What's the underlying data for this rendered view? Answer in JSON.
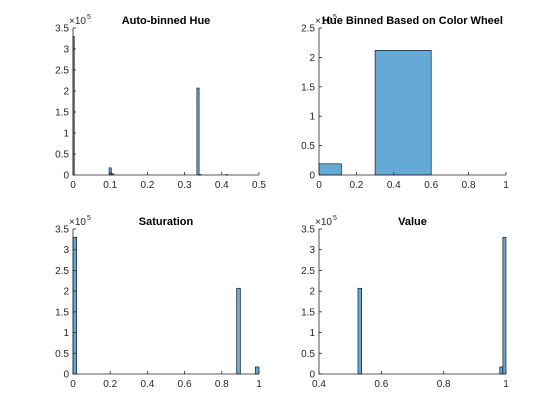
{
  "chart_data": [
    {
      "type": "bar",
      "title": "Auto-binned Hue",
      "xlim": [
        0,
        0.5
      ],
      "ylim": [
        0,
        3.5
      ],
      "xticks": [
        "0",
        "0.1",
        "0.2",
        "0.3",
        "0.4",
        "0.5"
      ],
      "xtick_values": [
        0,
        0.1,
        0.2,
        0.3,
        0.4,
        0.5
      ],
      "yticks": [
        "0",
        "0.5",
        "1",
        "1.5",
        "2",
        "2.5",
        "3",
        "3.5"
      ],
      "ytick_values": [
        0,
        0.5,
        1,
        1.5,
        2,
        2.5,
        3,
        3.5
      ],
      "y_multiplier": "×10",
      "y_exponent": "5",
      "bars": [
        {
          "x0": 0.0,
          "x1": 0.003,
          "y": 3.3
        },
        {
          "x0": 0.097,
          "x1": 0.103,
          "y": 0.17
        },
        {
          "x0": 0.103,
          "x1": 0.11,
          "y": 0.03
        },
        {
          "x0": 0.333,
          "x1": 0.339,
          "y": 2.07
        },
        {
          "x0": 0.339,
          "x1": 0.345,
          "y": 0.01
        },
        {
          "x0": 0.41,
          "x1": 0.416,
          "y": 0.01
        }
      ]
    },
    {
      "type": "bar",
      "title": "Hue Binned Based on Color Wheel",
      "xlim": [
        0,
        1
      ],
      "ylim": [
        0,
        2.5
      ],
      "xticks": [
        "0",
        "0.2",
        "0.4",
        "0.6",
        "0.8",
        "1"
      ],
      "xtick_values": [
        0,
        0.2,
        0.4,
        0.6,
        0.8,
        1
      ],
      "yticks": [
        "0",
        "0.5",
        "1",
        "1.5",
        "2",
        "2.5"
      ],
      "ytick_values": [
        0,
        0.5,
        1,
        1.5,
        2,
        2.5
      ],
      "y_multiplier": "×10",
      "y_exponent": "5",
      "bars": [
        {
          "x0": 0.0,
          "x1": 0.12,
          "y": 0.19
        },
        {
          "x0": 0.3,
          "x1": 0.6,
          "y": 2.12
        }
      ]
    },
    {
      "type": "bar",
      "title": "Saturation",
      "xlim": [
        0,
        1
      ],
      "ylim": [
        0,
        3.5
      ],
      "xticks": [
        "0",
        "0.2",
        "0.4",
        "0.6",
        "0.8",
        "1"
      ],
      "xtick_values": [
        0,
        0.2,
        0.4,
        0.6,
        0.8,
        1
      ],
      "yticks": [
        "0",
        "0.5",
        "1",
        "1.5",
        "2",
        "2.5",
        "3",
        "3.5"
      ],
      "ytick_values": [
        0,
        0.5,
        1,
        1.5,
        2,
        2.5,
        3,
        3.5
      ],
      "y_multiplier": "×10",
      "y_exponent": "5",
      "bars": [
        {
          "x0": 0.0,
          "x1": 0.02,
          "y": 3.3
        },
        {
          "x0": 0.88,
          "x1": 0.9,
          "y": 2.07
        },
        {
          "x0": 0.98,
          "x1": 1.0,
          "y": 0.17
        }
      ]
    },
    {
      "type": "bar",
      "title": "Value",
      "xlim": [
        0.4,
        1
      ],
      "ylim": [
        0,
        3.5
      ],
      "xticks": [
        "0.4",
        "0.6",
        "0.8",
        "1"
      ],
      "xtick_values": [
        0.4,
        0.6,
        0.8,
        1
      ],
      "yticks": [
        "0",
        "0.5",
        "1",
        "1.5",
        "2",
        "2.5",
        "3",
        "3.5"
      ],
      "ytick_values": [
        0,
        0.5,
        1,
        1.5,
        2,
        2.5,
        3,
        3.5
      ],
      "y_multiplier": "×10",
      "y_exponent": "5",
      "bars": [
        {
          "x0": 0.525,
          "x1": 0.537,
          "y": 2.07
        },
        {
          "x0": 0.98,
          "x1": 0.99,
          "y": 0.17
        },
        {
          "x0": 0.99,
          "x1": 1.0,
          "y": 3.3
        }
      ]
    }
  ],
  "colors": {
    "bar_fill": "#65a9d7",
    "bar_edge": "#000000",
    "axis": "#262626"
  }
}
